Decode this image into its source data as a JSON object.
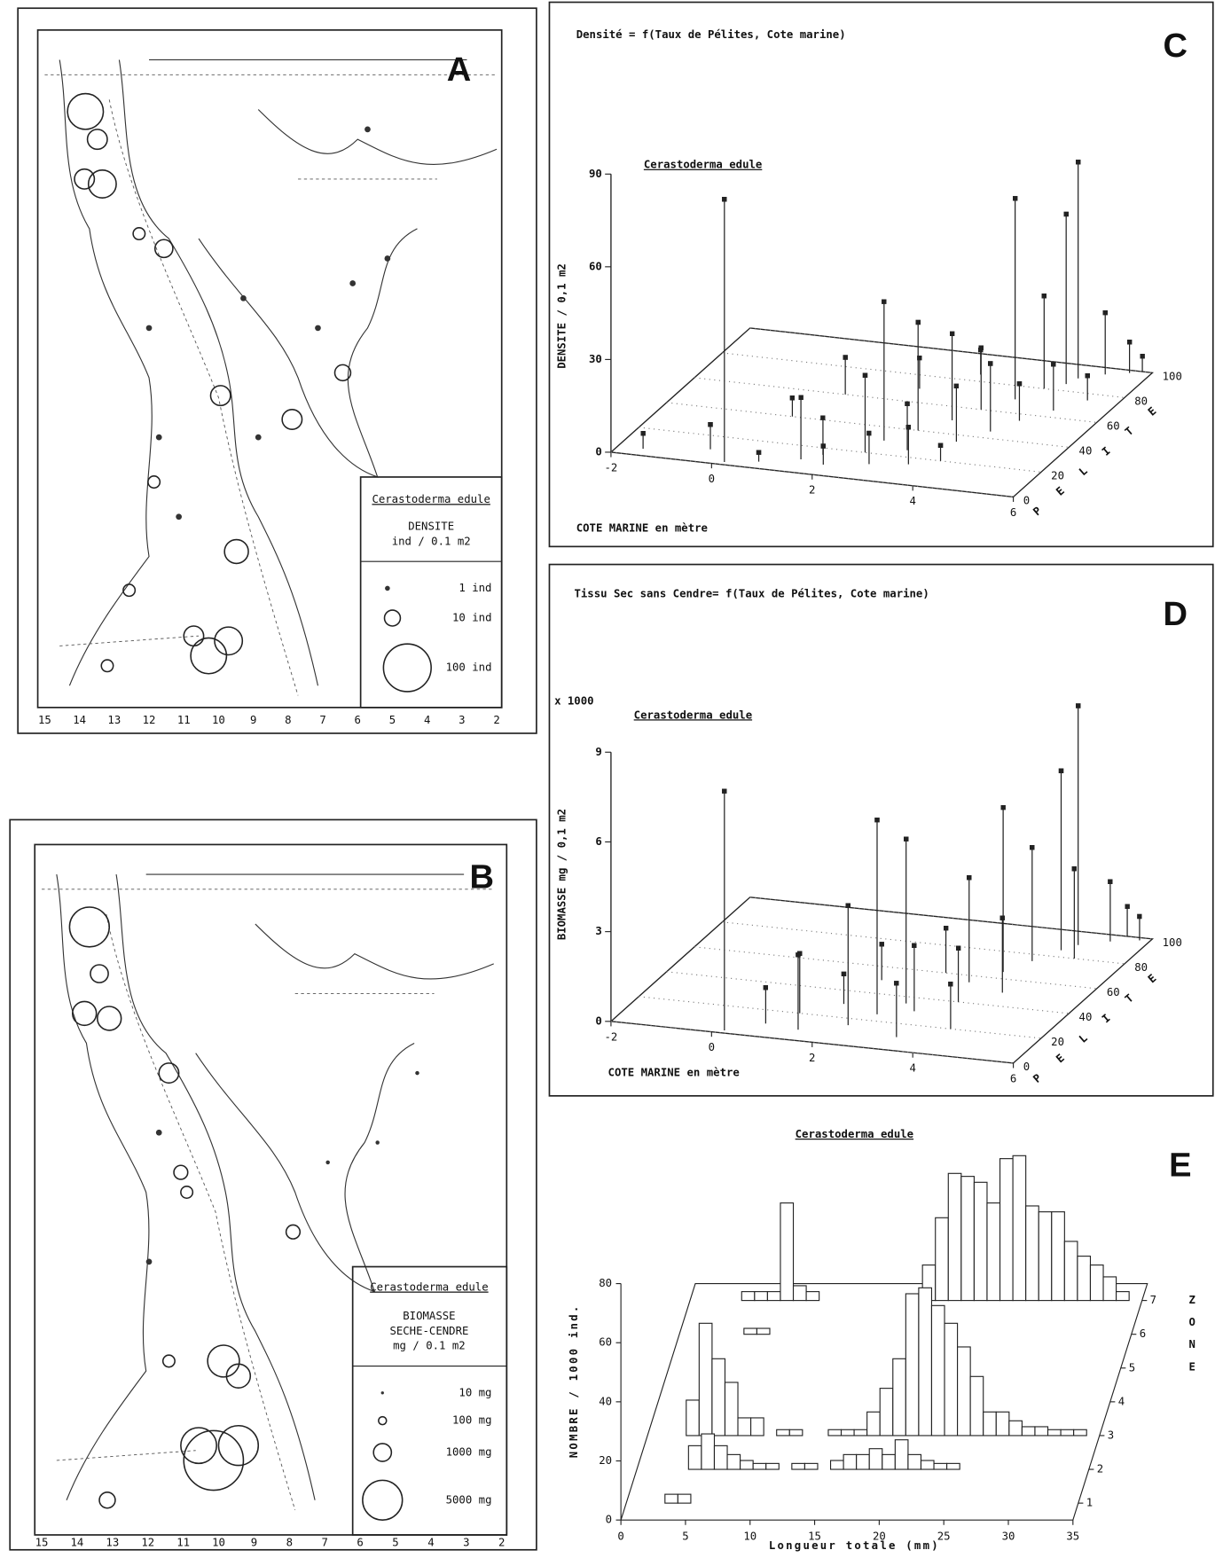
{
  "maps": [
    {
      "panel": "A",
      "legend": {
        "species": "Cerastoderma edule",
        "lines": [
          "DENSITE",
          "ind / 0.1 m2"
        ],
        "items": [
          "1 ind",
          "10 ind",
          "100 ind"
        ]
      },
      "xlabels": [
        "15",
        "14",
        "13",
        "12",
        "11",
        "10",
        "9",
        "8",
        "7",
        "6",
        "5",
        "4",
        "3",
        "2"
      ]
    },
    {
      "panel": "B",
      "legend": {
        "species": "Cerastoderma edule",
        "lines": [
          "BIOMASSE",
          "SECHE-CENDRE",
          "mg / 0.1 m2"
        ],
        "items": [
          "10 mg",
          "100 mg",
          "1000 mg",
          "5000 mg"
        ]
      },
      "xlabels": [
        "15",
        "14",
        "13",
        "12",
        "11",
        "10",
        "9",
        "8",
        "7",
        "6",
        "5",
        "4",
        "3",
        "2"
      ]
    }
  ],
  "chart_data": [
    {
      "type": "stem3d",
      "panel": "C",
      "title": "Densité = f(Taux de Pélites, Cote marine)",
      "subtitle": "Cerastoderma edule",
      "xlabel": "COTE MARINE en mètre",
      "ylabel": "PELITE",
      "zlabel": "DENSITE / 0,1 m2",
      "xlim": [
        -2,
        6
      ],
      "xticks": [
        -2,
        0,
        2,
        4,
        6
      ],
      "ylim": [
        0,
        100
      ],
      "yticks": [
        0,
        20,
        40,
        60,
        80,
        100
      ],
      "zlim": [
        0,
        90
      ],
      "zticks": [
        0,
        30,
        60,
        90
      ],
      "grid": true,
      "x": [
        0.2,
        -1.5,
        -0.3,
        0.8,
        1.5,
        1.8,
        2.0,
        2.5,
        2.6,
        2.8,
        3.0,
        3.2,
        3.4,
        3.5,
        3.7,
        3.9,
        4.1,
        4.3,
        4.4,
        4.6,
        4.7,
        4.8,
        5.0,
        5.2,
        5.4,
        5.6,
        1.0,
        2.2,
        3.0,
        0.5,
        5.8,
        4.0
      ],
      "y": [
        2,
        5,
        10,
        5,
        10,
        15,
        8,
        20,
        30,
        12,
        40,
        25,
        50,
        15,
        60,
        35,
        70,
        45,
        80,
        55,
        85,
        90,
        65,
        95,
        75,
        98,
        60,
        70,
        85,
        40,
        100,
        20
      ],
      "values": [
        85,
        5,
        8,
        3,
        20,
        12,
        6,
        25,
        45,
        10,
        35,
        15,
        28,
        12,
        20,
        18,
        65,
        22,
        30,
        12,
        55,
        70,
        15,
        20,
        8,
        10,
        12,
        10,
        8,
        6,
        5,
        5
      ]
    },
    {
      "type": "stem3d",
      "panel": "D",
      "title": "Tissu Sec sans Cendre= f(Taux de Pélites, Cote marine)",
      "subtitle": "Cerastoderma edule",
      "xlabel": "COTE MARINE en mètre",
      "ylabel": "PELITE",
      "zlabel": "BIOMASSE mg / 0,1 m2",
      "zmultiplier": "x 1000",
      "xlim": [
        -2,
        6
      ],
      "xticks": [
        -2,
        0,
        2,
        4,
        6
      ],
      "ylim": [
        0,
        100
      ],
      "yticks": [
        0,
        20,
        40,
        60,
        80,
        100
      ],
      "zlim": [
        0,
        9
      ],
      "zticks": [
        0,
        3,
        6,
        9
      ],
      "grid": true,
      "x": [
        0.2,
        1.5,
        2.3,
        2.6,
        2.9,
        1.2,
        3.2,
        3.6,
        4.0,
        4.3,
        4.6,
        4.8,
        5.0,
        5.3,
        3.8,
        3.0,
        2.0,
        4.4,
        5.5,
        1.8,
        0.8,
        4.2,
        3.4,
        5.8
      ],
      "y": [
        2,
        8,
        15,
        25,
        35,
        20,
        30,
        55,
        65,
        75,
        85,
        90,
        80,
        95,
        40,
        60,
        50,
        50,
        100,
        30,
        10,
        20,
        10,
        98
      ],
      "values": [
        8.0,
        2.5,
        4.0,
        6.5,
        5.5,
        2.0,
        2.2,
        3.5,
        5.5,
        3.8,
        6.0,
        8.0,
        3.0,
        2.0,
        1.8,
        1.5,
        1.2,
        2.5,
        1.0,
        1.0,
        1.2,
        1.5,
        1.8,
        0.8
      ]
    },
    {
      "type": "histogram3d",
      "panel": "E",
      "title": "Cerastoderma edule",
      "xlabel": "Longueur totale (mm)",
      "ylabel": "NOMBRE / 1000 ind.",
      "zlabel": "ZONE",
      "xlim": [
        0,
        35
      ],
      "xticks": [
        0,
        5,
        10,
        15,
        20,
        25,
        30,
        35
      ],
      "ylim": [
        0,
        80
      ],
      "yticks": [
        0,
        20,
        40,
        60,
        80
      ],
      "zticks": [
        1,
        2,
        3,
        4,
        5,
        6,
        7
      ],
      "bins": [
        2,
        3,
        4,
        5,
        6,
        7,
        8,
        9,
        10,
        11,
        12,
        13,
        14,
        15,
        16,
        17,
        18,
        19,
        20,
        21,
        22,
        23,
        24,
        25,
        26,
        27,
        28,
        29,
        30,
        31,
        32,
        33,
        34
      ],
      "series": [
        {
          "zone": 1,
          "values": [
            0,
            3,
            3,
            0,
            0,
            0,
            0,
            0,
            0,
            0,
            0,
            0,
            0,
            0,
            0,
            0,
            0,
            0,
            0,
            0,
            0,
            0,
            0,
            0,
            0,
            0,
            0,
            0,
            0,
            0,
            0,
            0
          ]
        },
        {
          "zone": 2,
          "values": [
            0,
            0,
            8,
            12,
            8,
            5,
            3,
            2,
            2,
            0,
            2,
            2,
            0,
            3,
            5,
            5,
            7,
            5,
            10,
            5,
            3,
            2,
            2,
            0,
            0,
            0,
            0,
            0,
            0,
            0,
            0,
            0
          ]
        },
        {
          "zone": 3,
          "values": [
            0,
            12,
            38,
            26,
            18,
            6,
            6,
            0,
            2,
            2,
            0,
            0,
            2,
            2,
            2,
            8,
            16,
            26,
            48,
            50,
            44,
            38,
            30,
            20,
            8,
            8,
            5,
            3,
            3,
            2,
            2,
            2
          ]
        },
        {
          "zone": 6,
          "values": [
            0,
            0,
            0,
            2,
            2,
            0,
            0,
            0,
            0,
            0,
            0,
            0,
            0,
            0,
            0,
            0,
            0,
            0,
            0,
            0,
            0,
            0,
            0,
            0,
            0,
            0,
            0,
            0,
            0,
            0,
            0,
            0
          ]
        },
        {
          "zone": 7,
          "values": [
            0,
            0,
            3,
            3,
            3,
            33,
            5,
            3,
            0,
            0,
            0,
            0,
            0,
            0,
            0,
            0,
            12,
            28,
            43,
            42,
            40,
            33,
            48,
            49,
            32,
            30,
            30,
            20,
            15,
            12,
            8,
            3
          ]
        }
      ]
    }
  ]
}
